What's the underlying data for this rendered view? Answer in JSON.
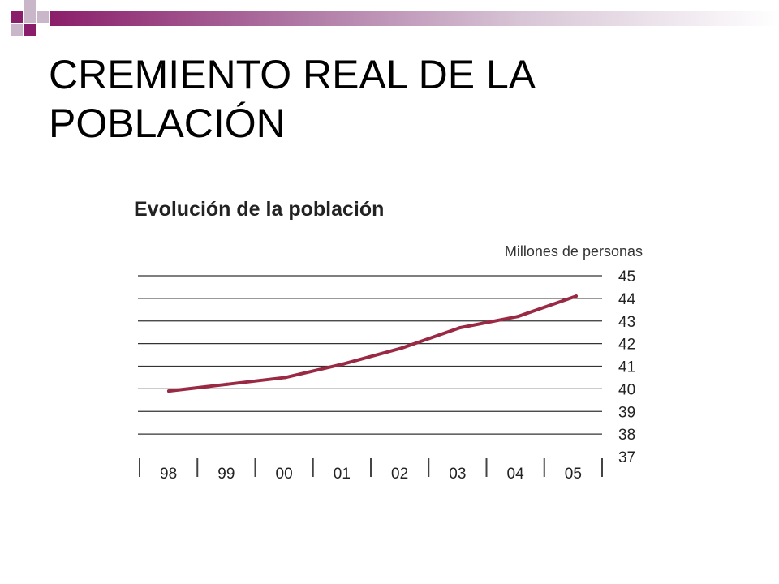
{
  "slide": {
    "title": "CREMIENTO REAL DE LA POBLACIÓN"
  },
  "colors": {
    "accent": "#8b1e6a",
    "line": "#9a2a44",
    "grid": "#333333"
  },
  "chart_data": {
    "type": "line",
    "title": "Evolución de la población",
    "ylabel": "Millones de personas",
    "xlabel": "",
    "categories": [
      "98",
      "99",
      "00",
      "01",
      "02",
      "03",
      "04",
      "05"
    ],
    "values": [
      39.9,
      40.2,
      40.5,
      41.1,
      41.8,
      42.7,
      43.2,
      44.1
    ],
    "y_ticks": [
      37,
      38,
      39,
      40,
      41,
      42,
      43,
      44,
      45
    ],
    "ylim": [
      37,
      45
    ],
    "grid": true,
    "y_axis_side": "right"
  }
}
